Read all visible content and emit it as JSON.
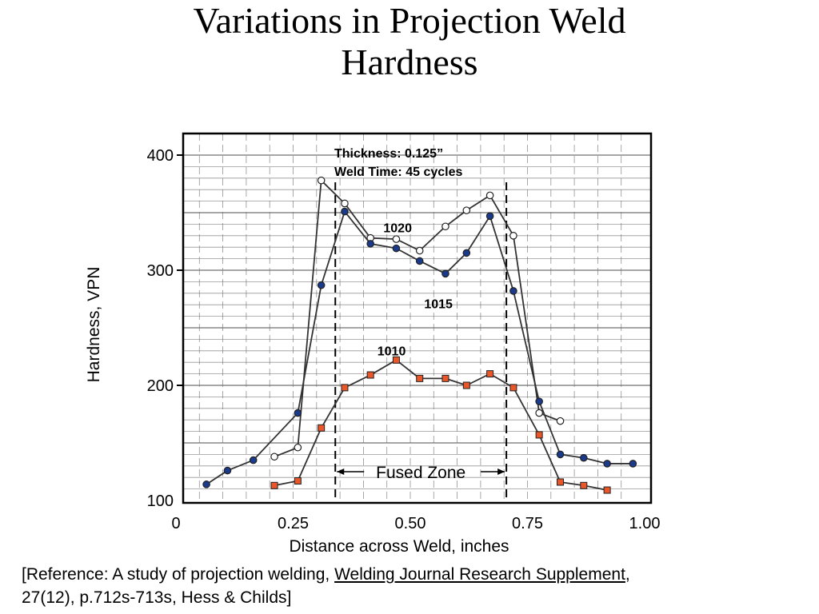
{
  "title": {
    "line1": "Variations in Projection Weld",
    "line2": "Hardness"
  },
  "chart_data": {
    "type": "line",
    "xlabel": "Distance across Weld, inches",
    "ylabel": "Hardness, VPN",
    "xlim": [
      0,
      1.0
    ],
    "ylim": [
      100,
      410
    ],
    "x_ticks": [
      {
        "value": 0,
        "label": "0"
      },
      {
        "value": 0.25,
        "label": "0.25"
      },
      {
        "value": 0.5,
        "label": "0.50"
      },
      {
        "value": 0.75,
        "label": "0.75"
      },
      {
        "value": 1.0,
        "label": "1.00"
      }
    ],
    "y_ticks": [
      {
        "value": 100,
        "label": "100"
      },
      {
        "value": 200,
        "label": "200"
      },
      {
        "value": 300,
        "label": "300"
      },
      {
        "value": 400,
        "label": "400"
      }
    ],
    "grid": true,
    "annotations": {
      "conditions_line1": "Thickness: 0.125”",
      "conditions_line2": "Weld Time: 45 cycles",
      "fused_zone_label": "Fused Zone",
      "fused_zone_range": [
        0.34,
        0.705
      ]
    },
    "series": [
      {
        "name": "1020",
        "marker": "open-circle",
        "color": "#ffffff",
        "label_at": [
          0.473,
          333
        ],
        "points": [
          [
            0.21,
            138
          ],
          [
            0.26,
            146
          ],
          [
            0.31,
            378
          ],
          [
            0.36,
            358
          ],
          [
            0.415,
            328
          ],
          [
            0.47,
            327
          ],
          [
            0.52,
            317
          ],
          [
            0.575,
            338
          ],
          [
            0.62,
            352
          ],
          [
            0.67,
            365
          ],
          [
            0.72,
            330
          ],
          [
            0.775,
            176
          ],
          [
            0.82,
            169
          ]
        ]
      },
      {
        "name": "1015",
        "marker": "filled-circle",
        "color": "#1a3a8c",
        "label_at": [
          0.56,
          267
        ],
        "points": [
          [
            0.065,
            114
          ],
          [
            0.11,
            126
          ],
          [
            0.165,
            135
          ],
          [
            0.26,
            176
          ],
          [
            0.31,
            287
          ],
          [
            0.36,
            351
          ],
          [
            0.415,
            323
          ],
          [
            0.47,
            319
          ],
          [
            0.52,
            308
          ],
          [
            0.575,
            297
          ],
          [
            0.62,
            315
          ],
          [
            0.67,
            347
          ],
          [
            0.72,
            282
          ],
          [
            0.775,
            186
          ],
          [
            0.82,
            140
          ],
          [
            0.87,
            137
          ],
          [
            0.92,
            132
          ],
          [
            0.975,
            132
          ]
        ]
      },
      {
        "name": "1010",
        "marker": "filled-square",
        "color": "#e8562a",
        "label_at": [
          0.46,
          226
        ],
        "points": [
          [
            0.21,
            113
          ],
          [
            0.26,
            117
          ],
          [
            0.31,
            163
          ],
          [
            0.36,
            198
          ],
          [
            0.415,
            209
          ],
          [
            0.47,
            222
          ],
          [
            0.52,
            206
          ],
          [
            0.575,
            206
          ],
          [
            0.62,
            200
          ],
          [
            0.67,
            210
          ],
          [
            0.72,
            198
          ],
          [
            0.775,
            157
          ],
          [
            0.82,
            116
          ],
          [
            0.87,
            113
          ],
          [
            0.92,
            109
          ]
        ]
      }
    ]
  },
  "reference": {
    "part1": "[Reference:  A study of projection welding, ",
    "journal": "Welding Journal Research Supplement",
    "part2": ", 27(12), p.712s-713s, Hess & Childs]"
  }
}
